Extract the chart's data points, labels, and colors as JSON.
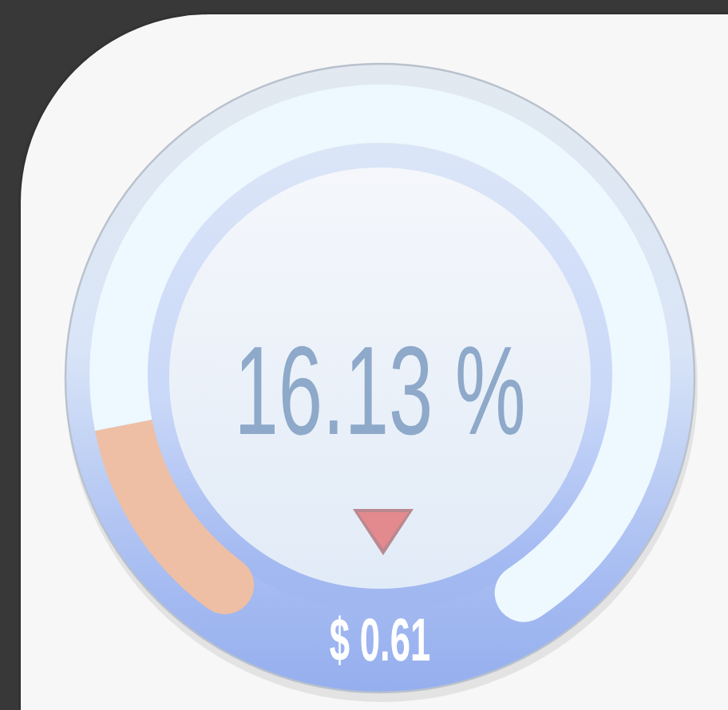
{
  "chart_data": {
    "type": "donut",
    "categories": [
      null,
      null
    ],
    "values": [
      16.13,
      83.87
    ],
    "colors": [
      "#eebfa4",
      "#eef8ff"
    ],
    "annotations": [
      "16.13 %",
      "$ 0.61"
    ]
  }
}
